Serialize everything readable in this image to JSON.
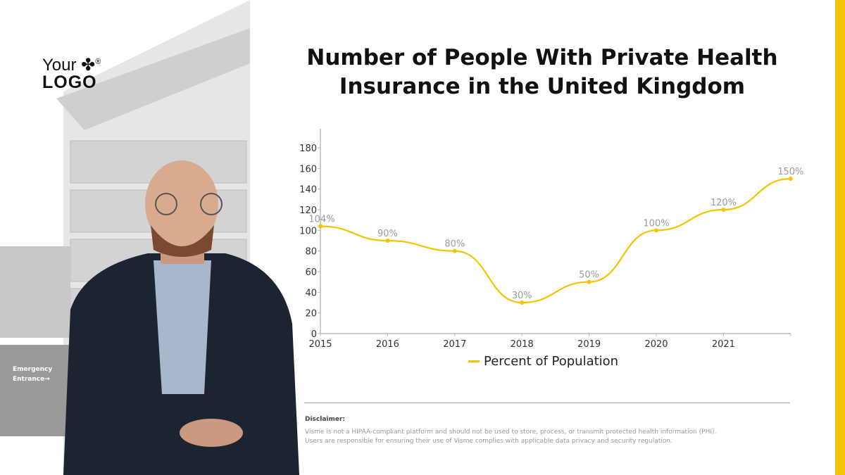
{
  "logo": {
    "line1": "Your",
    "line2": "LOGO",
    "mark": "®"
  },
  "photo": {
    "sign": "Emergency Entrance→"
  },
  "colors": {
    "accent": "#f5c400",
    "label": "#9a9a9a",
    "axis": "#bbbbbb"
  },
  "chart_data": {
    "type": "line",
    "title": "Number of People With Private Health Insurance in the United Kingdom",
    "categories": [
      "2015",
      "2016",
      "2017",
      "2018",
      "2019",
      "2020",
      "2021",
      ""
    ],
    "series": [
      {
        "name": "Percent of Population",
        "values": [
          104,
          90,
          80,
          30,
          50,
          100,
          120,
          150
        ],
        "labels": [
          "104%",
          "90%",
          "80%",
          "30%",
          "50%",
          "100%",
          "120%",
          "150%"
        ]
      }
    ],
    "ylim": [
      0,
      180
    ],
    "yticks": [
      0,
      20,
      40,
      60,
      80,
      100,
      120,
      140,
      160,
      180
    ],
    "smooth": true,
    "grid": false,
    "legend": "bottom"
  },
  "disclaimer": {
    "heading": "Disclaimer:",
    "line1": "Visme is not a HIPAA-compliant platform and should not be used to store, process, or transmit protected health information (PHI).",
    "line2": "Users are responsible for ensuring their use of Visme complies with applicable data privacy and security regulation."
  }
}
